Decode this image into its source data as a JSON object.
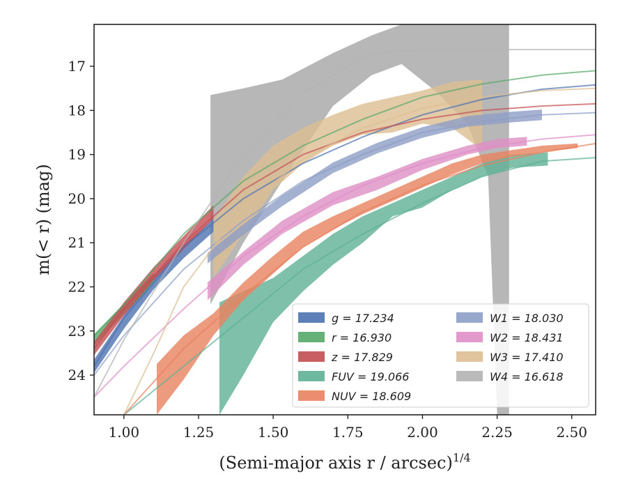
{
  "chart_data": {
    "type": "line",
    "xlabel": "(Semi-major axis r / arcsec)",
    "xlabel_exponent": "1/4",
    "ylabel": "m(< r) (mag)",
    "xlim": [
      0.9,
      2.58
    ],
    "ylim": [
      24.9,
      16.05
    ],
    "y_inverted": true,
    "x_ticks": [
      "1.00",
      "1.25",
      "1.50",
      "1.75",
      "2.00",
      "2.25",
      "2.50"
    ],
    "x_tick_values": [
      1.0,
      1.25,
      1.5,
      1.75,
      2.0,
      2.25,
      2.5
    ],
    "y_ticks": [
      "17",
      "18",
      "19",
      "20",
      "21",
      "22",
      "23",
      "24"
    ],
    "y_tick_values": [
      17,
      18,
      19,
      20,
      21,
      22,
      23,
      24
    ],
    "grid": false,
    "legend_placement": "lower-right",
    "series": [
      {
        "name": "g",
        "legend": "g = 17.234",
        "color": "#4c72b0",
        "band_x": [
          0.9,
          1.0,
          1.1,
          1.2,
          1.3
        ],
        "band_y": [
          23.8,
          22.8,
          21.9,
          21.2,
          20.6
        ],
        "band_width": 0.15,
        "model_x": [
          0.9,
          1.0,
          1.2,
          1.4,
          1.6,
          1.8,
          2.0,
          2.2,
          2.4,
          2.58
        ],
        "model_y": [
          23.8,
          22.7,
          21.1,
          20.0,
          19.2,
          18.6,
          18.1,
          17.75,
          17.52,
          17.42
        ]
      },
      {
        "name": "r",
        "legend": "r = 16.930",
        "color": "#55a868",
        "band_x": [
          0.9,
          1.0,
          1.1
        ],
        "band_y": [
          23.2,
          22.5,
          21.8
        ],
        "band_width": 0.12,
        "model_x": [
          0.9,
          1.0,
          1.2,
          1.4,
          1.6,
          1.8,
          2.0,
          2.2,
          2.4,
          2.58
        ],
        "model_y": [
          23.1,
          22.4,
          20.8,
          19.6,
          18.8,
          18.2,
          17.7,
          17.4,
          17.2,
          17.1
        ]
      },
      {
        "name": "z",
        "legend": "z = 17.829",
        "color": "#c44e52",
        "band_x": [
          0.9,
          1.0,
          1.1,
          1.2,
          1.3
        ],
        "band_y": [
          23.4,
          22.5,
          21.7,
          21.0,
          20.3
        ],
        "band_width": 0.15,
        "model_x": [
          0.9,
          1.0,
          1.2,
          1.4,
          1.6,
          1.8,
          2.0,
          2.2,
          2.4,
          2.58
        ],
        "model_y": [
          23.4,
          22.5,
          21.0,
          19.8,
          19.0,
          18.5,
          18.2,
          18.0,
          17.9,
          17.85
        ]
      },
      {
        "name": "FUV",
        "legend": "FUV = 19.066",
        "color": "#5fb096",
        "band_x": [
          1.32,
          1.4,
          1.5,
          1.6,
          1.7,
          1.8,
          1.9,
          2.0,
          2.1,
          2.2,
          2.3,
          2.42
        ],
        "band_low": [
          24.9,
          24.0,
          22.8,
          22.1,
          21.5,
          21.0,
          20.4,
          20.2,
          19.8,
          19.5,
          19.3,
          19.25
        ],
        "band_high": [
          22.35,
          22.1,
          21.8,
          21.3,
          20.8,
          20.4,
          20.1,
          19.8,
          19.5,
          19.2,
          19.0,
          18.95
        ],
        "model_x": [
          1.0,
          1.2,
          1.4,
          1.6,
          1.8,
          2.0,
          2.2,
          2.4,
          2.58
        ],
        "model_y": [
          24.9,
          23.8,
          22.7,
          21.6,
          20.8,
          20.1,
          19.5,
          19.15,
          19.07
        ]
      },
      {
        "name": "NUV",
        "legend": "NUV = 18.609",
        "color": "#e8825f",
        "band_x": [
          1.11,
          1.2,
          1.3,
          1.4,
          1.5,
          1.6,
          1.7,
          1.8,
          1.9,
          2.0,
          2.1,
          2.2,
          2.3,
          2.4,
          2.52
        ],
        "band_low": [
          24.9,
          24.1,
          23.1,
          22.3,
          21.7,
          21.1,
          20.7,
          20.35,
          20.05,
          19.75,
          19.45,
          19.2,
          19.05,
          18.95,
          18.85
        ],
        "band_high": [
          23.75,
          23.1,
          22.6,
          21.9,
          21.3,
          20.75,
          20.4,
          20.1,
          19.8,
          19.5,
          19.2,
          19.0,
          18.9,
          18.8,
          18.75
        ],
        "model_x": [
          1.0,
          1.2,
          1.4,
          1.6,
          1.8,
          2.0,
          2.2,
          2.4,
          2.58
        ],
        "model_y": [
          24.9,
          23.4,
          22.2,
          21.1,
          20.3,
          19.7,
          19.25,
          18.95,
          18.75
        ]
      },
      {
        "name": "W1",
        "legend": "W1 = 18.030",
        "color": "#8d9ec6",
        "band_x": [
          1.28,
          1.4,
          1.53,
          1.7,
          1.85,
          2.0,
          2.15,
          2.3,
          2.4
        ],
        "band_y": [
          21.35,
          20.7,
          20.05,
          19.3,
          18.85,
          18.5,
          18.25,
          18.15,
          18.1
        ],
        "band_width": 0.12,
        "model_x": [
          0.9,
          1.0,
          1.2,
          1.4,
          1.6,
          1.8,
          2.0,
          2.2,
          2.4,
          2.58
        ],
        "model_y": [
          24.0,
          23.1,
          21.6,
          20.5,
          19.6,
          19.0,
          18.5,
          18.25,
          18.1,
          18.05
        ]
      },
      {
        "name": "W2",
        "legend": "W2 = 18.431",
        "color": "#df8fc6",
        "band_x": [
          1.28,
          1.4,
          1.53,
          1.7,
          1.85,
          2.0,
          2.15,
          2.25,
          2.35
        ],
        "band_low": [
          22.3,
          21.5,
          20.8,
          20.15,
          19.8,
          19.35,
          19.0,
          18.85,
          18.8
        ],
        "band_high": [
          21.9,
          21.2,
          20.5,
          19.85,
          19.5,
          19.1,
          18.8,
          18.65,
          18.6
        ],
        "model_x": [
          0.9,
          1.0,
          1.2,
          1.4,
          1.6,
          1.8,
          2.0,
          2.2,
          2.4,
          2.58
        ],
        "model_y": [
          24.5,
          23.8,
          22.5,
          21.3,
          20.4,
          19.7,
          19.2,
          18.85,
          18.65,
          18.55
        ]
      },
      {
        "name": "W3",
        "legend": "W3 = 17.410",
        "color": "#ddbe92",
        "band_x": [
          1.3,
          1.4,
          1.5,
          1.6,
          1.7,
          1.8,
          1.9,
          2.0,
          2.1,
          2.2
        ],
        "band_low": [
          21.8,
          20.8,
          19.8,
          19.2,
          18.8,
          18.55,
          18.5,
          18.3,
          18.4,
          18.9
        ],
        "band_high": [
          20.5,
          19.5,
          18.8,
          18.4,
          18.1,
          17.85,
          17.7,
          17.55,
          17.35,
          17.3
        ],
        "model_x": [
          1.0,
          1.1,
          1.2,
          1.4,
          1.6,
          1.8,
          2.0,
          2.2,
          2.4,
          2.58
        ],
        "model_y": [
          24.9,
          23.5,
          22.0,
          20.2,
          19.1,
          18.4,
          17.95,
          17.7,
          17.55,
          17.5
        ]
      },
      {
        "name": "W4",
        "legend": "W4 = 16.618",
        "color": "#b3b3b3",
        "band_x": [
          1.29,
          1.4,
          1.53,
          1.7,
          1.83,
          1.93,
          2.05,
          2.15,
          2.22,
          2.25,
          2.29
        ],
        "band_low": [
          22.4,
          21.0,
          19.6,
          17.9,
          17.2,
          16.95,
          17.6,
          18.3,
          19.5,
          24.9,
          24.9
        ],
        "band_high": [
          17.65,
          17.5,
          17.3,
          16.7,
          16.3,
          16.05,
          16.05,
          16.05,
          16.05,
          16.05,
          16.05
        ],
        "model_x": [
          0.9,
          1.0,
          1.2,
          1.4,
          1.6,
          1.8,
          1.9,
          2.0,
          2.2,
          2.4,
          2.58
        ],
        "model_y": [
          24.5,
          23.2,
          21.0,
          19.0,
          17.6,
          16.8,
          16.65,
          16.62,
          16.62,
          16.62,
          16.62
        ]
      }
    ],
    "legend_entries": [
      [
        "g = 17.234",
        "#4c72b0"
      ],
      [
        "r = 16.930",
        "#55a868"
      ],
      [
        "z = 17.829",
        "#c44e52"
      ],
      [
        "FUV = 19.066",
        "#5fb096"
      ],
      [
        "NUV = 18.609",
        "#e8825f"
      ],
      [
        "W1 = 18.030",
        "#8d9ec6"
      ],
      [
        "W2 = 18.431",
        "#df8fc6"
      ],
      [
        "W3 = 17.410",
        "#ddbe92"
      ],
      [
        "W4 = 16.618",
        "#b3b3b3"
      ]
    ]
  }
}
